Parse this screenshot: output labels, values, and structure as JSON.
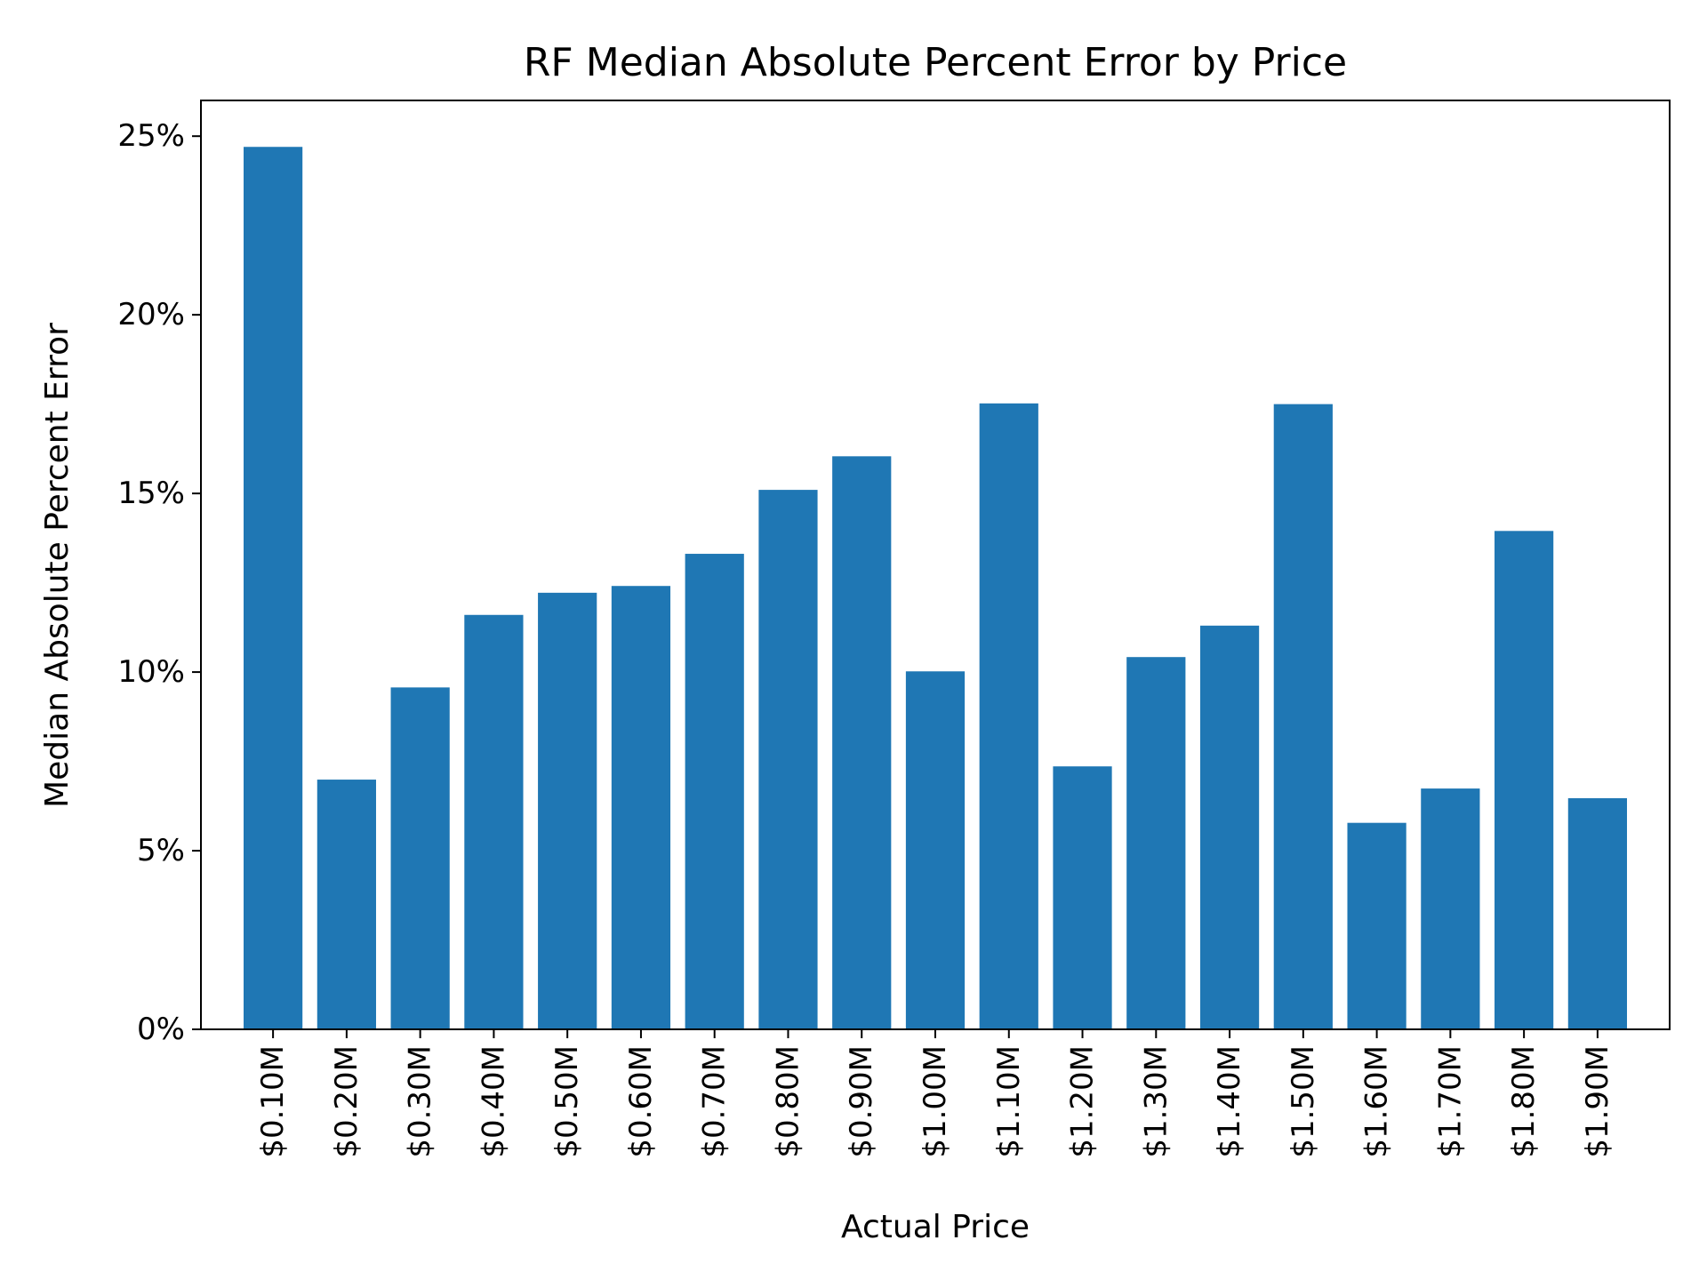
{
  "chart_data": {
    "type": "bar",
    "title": "RF Median Absolute Percent Error by Price",
    "xlabel": "Actual Price",
    "ylabel": "Median Absolute Percent Error",
    "categories": [
      "$0.10M",
      "$0.20M",
      "$0.30M",
      "$0.40M",
      "$0.50M",
      "$0.60M",
      "$0.70M",
      "$0.80M",
      "$0.90M",
      "$1.00M",
      "$1.10M",
      "$1.20M",
      "$1.30M",
      "$1.40M",
      "$1.50M",
      "$1.60M",
      "$1.70M",
      "$1.80M",
      "$1.90M"
    ],
    "values": [
      24.7,
      6.99,
      9.57,
      11.6,
      12.22,
      12.41,
      13.31,
      15.1,
      16.04,
      10.02,
      17.52,
      7.36,
      10.42,
      11.3,
      17.5,
      5.78,
      6.74,
      13.95,
      6.47
    ],
    "ylim": [
      0,
      26
    ],
    "yticks": [
      0,
      5,
      10,
      15,
      20,
      25
    ],
    "ytick_labels": [
      "0%",
      "5%",
      "10%",
      "15%",
      "20%",
      "25%"
    ],
    "grid": false,
    "legend": "none",
    "bar_color": "#1f77b4"
  }
}
